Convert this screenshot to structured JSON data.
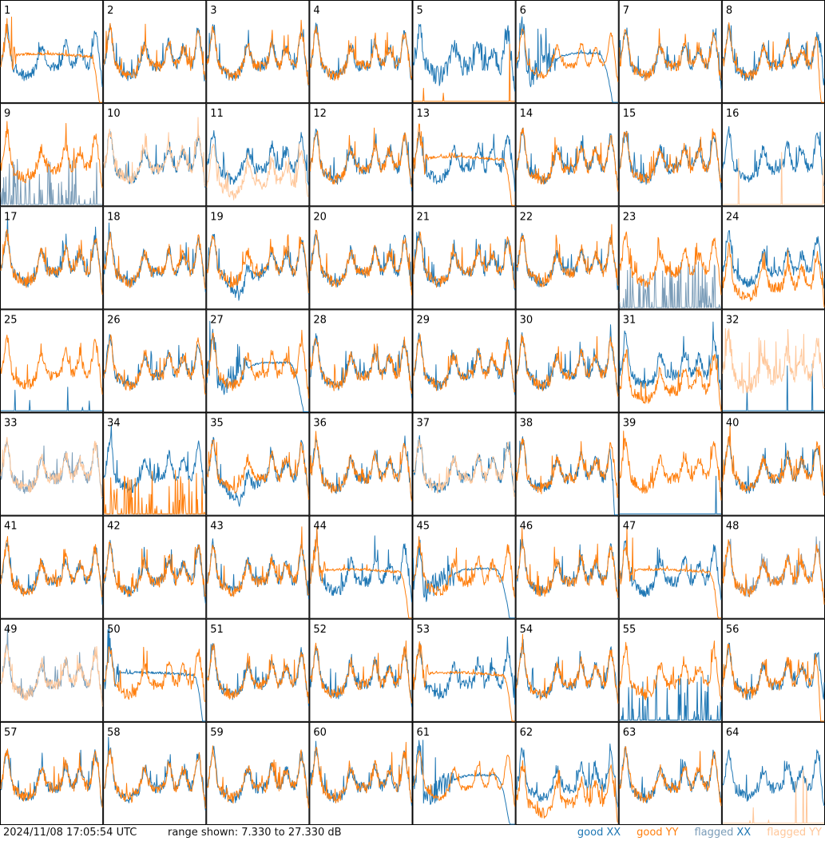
{
  "chart_data": {
    "type": "line",
    "grid": {
      "rows": 8,
      "cols": 8
    },
    "panel_labels": [
      "1",
      "2",
      "3",
      "4",
      "5",
      "6",
      "7",
      "8",
      "9",
      "10",
      "11",
      "12",
      "13",
      "14",
      "15",
      "16",
      "17",
      "18",
      "19",
      "20",
      "21",
      "22",
      "23",
      "24",
      "25",
      "26",
      "27",
      "28",
      "29",
      "30",
      "31",
      "32",
      "33",
      "34",
      "35",
      "36",
      "37",
      "38",
      "39",
      "40",
      "41",
      "42",
      "43",
      "44",
      "45",
      "46",
      "47",
      "48",
      "49",
      "50",
      "51",
      "52",
      "53",
      "54",
      "55",
      "56",
      "57",
      "58",
      "59",
      "60",
      "61",
      "62",
      "63",
      "64"
    ],
    "ylim": [
      7.33,
      27.33
    ],
    "ylabel_units": "dB",
    "series_colors": {
      "good_xx": "#1f77b4",
      "good_yy": "#ff7f0e",
      "flagged_xx": "#7a9cb8",
      "flagged_yy": "#ffc79a"
    },
    "panels": {
      "1": {
        "xx": "good",
        "yy": "good",
        "yy_shape": "droop"
      },
      "2": {
        "xx": "good",
        "yy": "good"
      },
      "3": {
        "xx": "good",
        "yy": "good"
      },
      "4": {
        "xx": "good",
        "yy": "good"
      },
      "5": {
        "xx": "good",
        "yy": "good",
        "yy_shape": "flat-low",
        "xx_shape": "noisy"
      },
      "6": {
        "xx": "good",
        "yy": "good",
        "xx_shape": "dip-droop",
        "yy_shape": "smooth"
      },
      "7": {
        "xx": "good",
        "yy": "good"
      },
      "8": {
        "xx": "good",
        "yy": "good",
        "yy_shape": "drop-end"
      },
      "9": {
        "xx": "flagged",
        "yy": "good",
        "xx_shape": "spikes-low"
      },
      "10": {
        "xx": "good",
        "yy": "flagged"
      },
      "11": {
        "xx": "good",
        "yy": "flagged",
        "yy_shape": "low"
      },
      "12": {
        "xx": "good",
        "yy": "good"
      },
      "13": {
        "xx": "good",
        "yy": "good",
        "yy_shape": "droop"
      },
      "14": {
        "xx": "good",
        "yy": "good"
      },
      "15": {
        "xx": "good",
        "yy": "good"
      },
      "16": {
        "xx": "good",
        "yy": "flagged",
        "yy_shape": "flat-low"
      },
      "17": {
        "xx": "good",
        "yy": "good"
      },
      "18": {
        "xx": "good",
        "yy": "good"
      },
      "19": {
        "xx": "good",
        "yy": "good",
        "xx_shape": "dip"
      },
      "20": {
        "xx": "good",
        "yy": "good"
      },
      "21": {
        "xx": "good",
        "yy": "good"
      },
      "22": {
        "xx": "good",
        "yy": "good"
      },
      "23": {
        "xx": "flagged",
        "yy": "good",
        "xx_shape": "spikes-low"
      },
      "24": {
        "xx": "good",
        "yy": "good",
        "yy_shape": "low"
      },
      "25": {
        "xx": "good",
        "yy": "good",
        "xx_shape": "flat-low"
      },
      "26": {
        "xx": "good",
        "yy": "good"
      },
      "27": {
        "xx": "good",
        "yy": "good",
        "xx_shape": "dip-droop"
      },
      "28": {
        "xx": "good",
        "yy": "good"
      },
      "29": {
        "xx": "good",
        "yy": "good"
      },
      "30": {
        "xx": "good",
        "yy": "good"
      },
      "31": {
        "xx": "good",
        "yy": "good",
        "yy_shape": "low"
      },
      "32": {
        "xx": "good",
        "yy": "flagged",
        "xx_shape": "flat-low",
        "yy_shape": "noisy"
      },
      "33": {
        "xx": "flagged",
        "yy": "flagged"
      },
      "34": {
        "xx": "good",
        "yy": "good",
        "yy_shape": "spikes-low"
      },
      "35": {
        "xx": "good",
        "yy": "good",
        "xx_shape": "dip"
      },
      "36": {
        "xx": "good",
        "yy": "good"
      },
      "37": {
        "xx": "good",
        "yy": "flagged"
      },
      "38": {
        "xx": "good",
        "yy": "good",
        "xx_shape": "drop-end"
      },
      "39": {
        "xx": "good",
        "yy": "good",
        "xx_shape": "flat-low"
      },
      "40": {
        "xx": "good",
        "yy": "good"
      },
      "41": {
        "xx": "good",
        "yy": "good"
      },
      "42": {
        "xx": "good",
        "yy": "good"
      },
      "43": {
        "xx": "good",
        "yy": "good"
      },
      "44": {
        "xx": "good",
        "yy": "good",
        "yy_shape": "droop"
      },
      "45": {
        "xx": "good",
        "yy": "good",
        "xx_shape": "dip-droop"
      },
      "46": {
        "xx": "good",
        "yy": "good"
      },
      "47": {
        "xx": "good",
        "yy": "good",
        "yy_shape": "droop"
      },
      "48": {
        "xx": "flagged",
        "yy": "good"
      },
      "49": {
        "xx": "flagged",
        "yy": "flagged"
      },
      "50": {
        "xx": "good",
        "yy": "good",
        "xx_shape": "droop"
      },
      "51": {
        "xx": "good",
        "yy": "good"
      },
      "52": {
        "xx": "good",
        "yy": "good"
      },
      "53": {
        "xx": "good",
        "yy": "good",
        "yy_shape": "droop"
      },
      "54": {
        "xx": "good",
        "yy": "good"
      },
      "55": {
        "xx": "good",
        "yy": "good",
        "xx_shape": "spikes-low"
      },
      "56": {
        "xx": "good",
        "yy": "good",
        "yy_shape": "drop-end"
      },
      "57": {
        "xx": "good",
        "yy": "good"
      },
      "58": {
        "xx": "good",
        "yy": "good"
      },
      "59": {
        "xx": "good",
        "yy": "good"
      },
      "60": {
        "xx": "good",
        "yy": "good"
      },
      "61": {
        "xx": "good",
        "yy": "good",
        "xx_shape": "dip-droop",
        "yy_shape": "smooth"
      },
      "62": {
        "xx": "good",
        "yy": "good",
        "yy_shape": "low"
      },
      "63": {
        "xx": "good",
        "yy": "good"
      },
      "64": {
        "xx": "good",
        "yy": "flagged",
        "yy_shape": "flat-low"
      }
    }
  },
  "footer": {
    "timestamp": "2024/11/08 17:05:54 UTC",
    "range_text": "range shown: 7.330 to 27.330 dB",
    "legend": [
      {
        "q": "good",
        "pol": "XX",
        "q_color": "#1f77b4",
        "pol_color": "#1f77b4"
      },
      {
        "q": "good",
        "pol": "YY",
        "q_color": "#ff7f0e",
        "pol_color": "#ff7f0e"
      },
      {
        "q": "flagged",
        "pol": "XX",
        "q_color": "#7a9cb8",
        "pol_color": "#1f77b4"
      },
      {
        "q": "flagged",
        "pol": "YY",
        "q_color": "#ffc79a",
        "pol_color": "#ffc79a"
      }
    ]
  }
}
